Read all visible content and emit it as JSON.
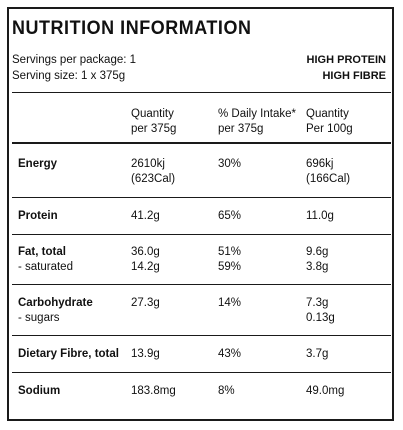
{
  "title": "NUTRITION INFORMATION",
  "servings_per_package": "Servings per package: 1",
  "serving_size": "Serving size: 1 x 375g",
  "claims": [
    "HIGH PROTEIN",
    "HIGH FIBRE"
  ],
  "columns": [
    {
      "line1": "Quantity",
      "line2": "per 375g"
    },
    {
      "line1": "% Daily Intake*",
      "line2": "per 375g"
    },
    {
      "line1": "Quantity",
      "line2": "Per 100g"
    }
  ],
  "rows": [
    {
      "label": "Energy",
      "sub_label": "",
      "per_serve": "2610kj",
      "per_serve_sub": "(623Cal)",
      "daily": "30%",
      "daily_sub": "",
      "per_100g": "696kj",
      "per_100g_sub": "(166Cal)"
    },
    {
      "label": "Protein",
      "sub_label": "",
      "per_serve": "41.2g",
      "per_serve_sub": "",
      "daily": "65%",
      "daily_sub": "",
      "per_100g": "11.0g",
      "per_100g_sub": ""
    },
    {
      "label": "Fat, total",
      "sub_label": " - saturated",
      "per_serve": "36.0g",
      "per_serve_sub": "14.2g",
      "daily": "51%",
      "daily_sub": "59%",
      "per_100g": "9.6g",
      "per_100g_sub": "3.8g"
    },
    {
      "label": "Carbohydrate",
      "sub_label": " - sugars",
      "per_serve": "27.3g",
      "per_serve_sub": "",
      "daily": "14%",
      "daily_sub": "",
      "per_100g": "7.3g",
      "per_100g_sub": "0.13g"
    },
    {
      "label": "Dietary Fibre, total",
      "sub_label": "",
      "per_serve": "13.9g",
      "per_serve_sub": "",
      "daily": "43%",
      "daily_sub": "",
      "per_100g": "3.7g",
      "per_100g_sub": ""
    },
    {
      "label": "Sodium",
      "sub_label": "",
      "per_serve": "183.8mg",
      "per_serve_sub": "",
      "daily": "8%",
      "daily_sub": "",
      "per_100g": "49.0mg",
      "per_100g_sub": ""
    }
  ]
}
